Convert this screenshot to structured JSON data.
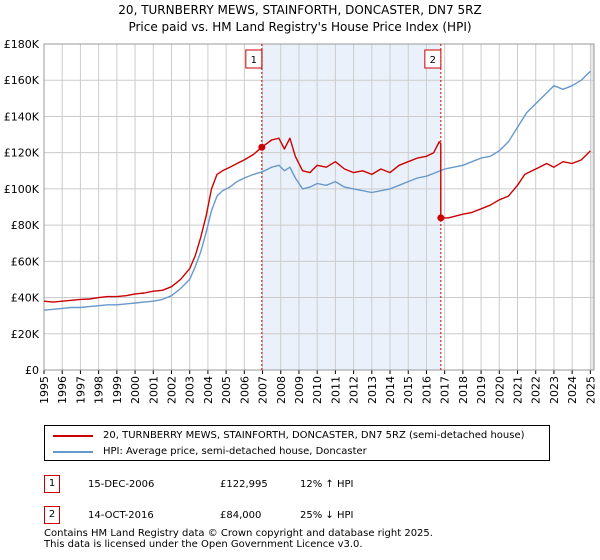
{
  "chart_data": {
    "type": "line",
    "title": "20, TURNBERRY MEWS, STAINFORTH, DONCASTER, DN7 5RZ",
    "subtitle": "Price paid vs. HM Land Registry's House Price Index (HPI)",
    "xlim": [
      1995.0,
      2025.2
    ],
    "ylim": [
      0,
      180000
    ],
    "y_ticks": [
      {
        "value": 0,
        "label": "£0"
      },
      {
        "value": 20000,
        "label": "£20K"
      },
      {
        "value": 40000,
        "label": "£40K"
      },
      {
        "value": 60000,
        "label": "£60K"
      },
      {
        "value": 80000,
        "label": "£80K"
      },
      {
        "value": 100000,
        "label": "£100K"
      },
      {
        "value": 120000,
        "label": "£120K"
      },
      {
        "value": 140000,
        "label": "£140K"
      },
      {
        "value": 160000,
        "label": "£160K"
      },
      {
        "value": 180000,
        "label": "£180K"
      }
    ],
    "x_ticks": [
      "1995",
      "1996",
      "1997",
      "1998",
      "1999",
      "2000",
      "2001",
      "2002",
      "2003",
      "2004",
      "2005",
      "2006",
      "2007",
      "2008",
      "2009",
      "2010",
      "2011",
      "2012",
      "2013",
      "2014",
      "2015",
      "2016",
      "2017",
      "2018",
      "2019",
      "2020",
      "2021",
      "2022",
      "2023",
      "2024",
      "2025"
    ],
    "grid": true,
    "colors": {
      "property": "#cc0000",
      "hpi": "#6699cc",
      "shade": "#dde8f7",
      "marker_line": "#cc0000"
    },
    "series": [
      {
        "name": "20, TURNBERRY MEWS, STAINFORTH, DONCASTER, DN7 5RZ (semi-detached house)",
        "x": [
          1995.0,
          1995.5,
          1996.0,
          1996.5,
          1997.0,
          1997.5,
          1998.0,
          1998.5,
          1999.0,
          1999.5,
          2000.0,
          2000.5,
          2001.0,
          2001.5,
          2002.0,
          2002.5,
          2003.0,
          2003.3,
          2003.6,
          2003.9,
          2004.2,
          2004.5,
          2004.8,
          2005.2,
          2005.6,
          2006.0,
          2006.5,
          2006.96,
          2007.5,
          2007.9,
          2008.2,
          2008.5,
          2008.8,
          2009.2,
          2009.6,
          2010.0,
          2010.5,
          2011.0,
          2011.5,
          2012.0,
          2012.5,
          2013.0,
          2013.5,
          2014.0,
          2014.5,
          2015.0,
          2015.5,
          2016.0,
          2016.4,
          2016.7,
          2016.79,
          2016.79,
          2017.2,
          2017.6,
          2018.0,
          2018.5,
          2019.0,
          2019.5,
          2020.0,
          2020.5,
          2021.0,
          2021.4,
          2021.8,
          2022.2,
          2022.6,
          2023.0,
          2023.5,
          2024.0,
          2024.5,
          2025.0
        ],
        "values": [
          38000,
          37500,
          38000,
          38500,
          39000,
          39200,
          40000,
          40500,
          40500,
          41000,
          42000,
          42500,
          43500,
          44000,
          46000,
          50000,
          56000,
          63000,
          73000,
          85000,
          100000,
          108000,
          110000,
          112000,
          114000,
          116000,
          119000,
          122995,
          127000,
          128000,
          122000,
          128000,
          118000,
          110000,
          109000,
          113000,
          112000,
          115000,
          111000,
          109000,
          110000,
          108000,
          111000,
          109000,
          113000,
          115000,
          117000,
          118000,
          120000,
          126000,
          125000,
          84000,
          84000,
          85000,
          86000,
          87000,
          89000,
          91000,
          94000,
          96000,
          102000,
          108000,
          110000,
          112000,
          114000,
          112000,
          115000,
          114000,
          116000,
          121000
        ]
      },
      {
        "name": "HPI: Average price, semi-detached house, Doncaster",
        "x": [
          1995.0,
          1995.5,
          1996.0,
          1996.5,
          1997.0,
          1997.5,
          1998.0,
          1998.5,
          1999.0,
          1999.5,
          2000.0,
          2000.5,
          2001.0,
          2001.5,
          2002.0,
          2002.5,
          2003.0,
          2003.3,
          2003.6,
          2003.9,
          2004.2,
          2004.5,
          2004.8,
          2005.2,
          2005.6,
          2006.0,
          2006.5,
          2007.0,
          2007.5,
          2007.9,
          2008.2,
          2008.5,
          2008.8,
          2009.2,
          2009.6,
          2010.0,
          2010.5,
          2011.0,
          2011.5,
          2012.0,
          2012.5,
          2013.0,
          2013.5,
          2014.0,
          2014.5,
          2015.0,
          2015.5,
          2016.0,
          2016.5,
          2017.0,
          2017.5,
          2018.0,
          2018.5,
          2019.0,
          2019.5,
          2020.0,
          2020.5,
          2021.0,
          2021.5,
          2022.0,
          2022.5,
          2023.0,
          2023.5,
          2024.0,
          2024.5,
          2025.0
        ],
        "values": [
          33000,
          33500,
          34000,
          34500,
          34500,
          35000,
          35500,
          36000,
          36000,
          36500,
          37000,
          37500,
          38000,
          39000,
          41000,
          45000,
          50000,
          57000,
          65000,
          76000,
          88000,
          96000,
          99000,
          101000,
          104000,
          106000,
          108000,
          109500,
          112000,
          113000,
          110000,
          112000,
          106000,
          100000,
          101000,
          103000,
          102000,
          104000,
          101000,
          100000,
          99000,
          98000,
          99000,
          100000,
          102000,
          104000,
          106000,
          107000,
          109000,
          111000,
          112000,
          113000,
          115000,
          117000,
          118000,
          121000,
          126000,
          134000,
          142000,
          147000,
          152000,
          157000,
          155000,
          157000,
          160000,
          165000
        ]
      }
    ],
    "sales": [
      {
        "id": "1",
        "date": "15-DEC-2006",
        "price_label": "£122,995",
        "hpi_label": "12% ↑ HPI",
        "x": 2006.96,
        "price": 122995
      },
      {
        "id": "2",
        "date": "14-OCT-2016",
        "price_label": "£84,000",
        "hpi_label": "25% ↓ HPI",
        "x": 2016.79,
        "price": 84000
      }
    ]
  },
  "footer": {
    "line1": "Contains HM Land Registry data © Crown copyright and database right 2025.",
    "line2": "This data is licensed under the Open Government Licence v3.0."
  }
}
